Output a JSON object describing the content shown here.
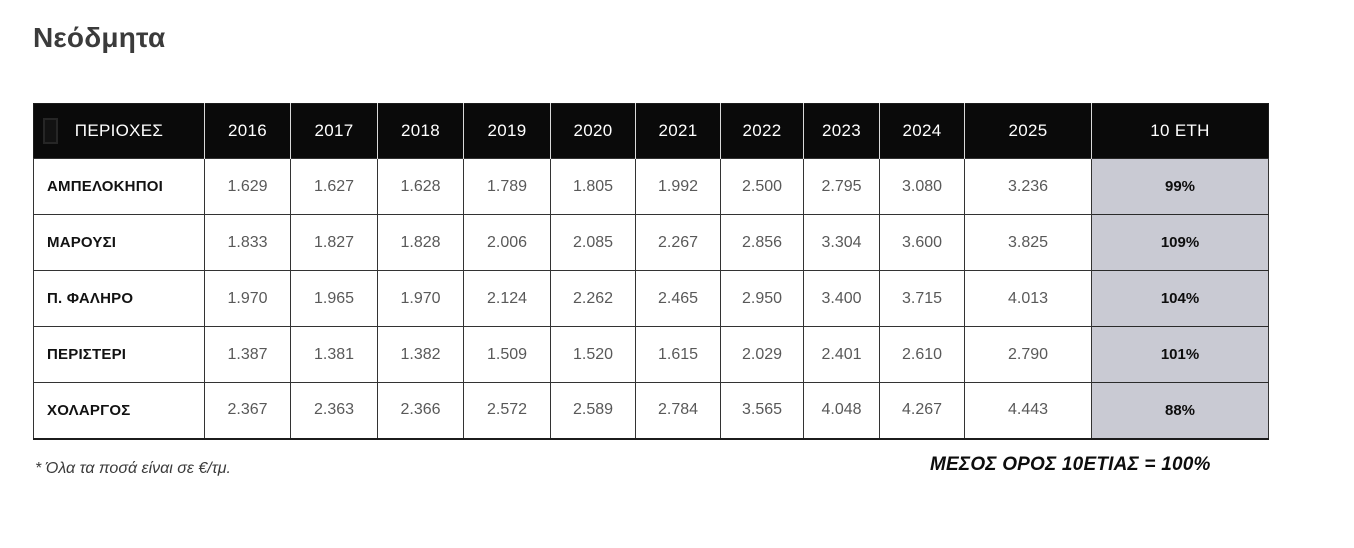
{
  "title": "Νεόδμητα",
  "table": {
    "region_header": "ΠΕΡΙΟΧΕΣ",
    "year_headers": [
      "2016",
      "2017",
      "2018",
      "2019",
      "2020",
      "2021",
      "2022",
      "2023",
      "2024",
      "2025"
    ],
    "summary_header": "10 ΕΤΗ",
    "rows": [
      {
        "region": "ΑΜΠΕΛΟΚΗΠΟΙ",
        "values": [
          "1.629",
          "1.627",
          "1.628",
          "1.789",
          "1.805",
          "1.992",
          "2.500",
          "2.795",
          "3.080",
          "3.236"
        ],
        "ten_year": "99%"
      },
      {
        "region": "ΜΑΡΟΥΣΙ",
        "values": [
          "1.833",
          "1.827",
          "1.828",
          "2.006",
          "2.085",
          "2.267",
          "2.856",
          "3.304",
          "3.600",
          "3.825"
        ],
        "ten_year": "109%"
      },
      {
        "region": "Π. ΦΑΛΗΡΟ",
        "values": [
          "1.970",
          "1.965",
          "1.970",
          "2.124",
          "2.262",
          "2.465",
          "2.950",
          "3.400",
          "3.715",
          "4.013"
        ],
        "ten_year": "104%"
      },
      {
        "region": "ΠΕΡΙΣΤΕΡΙ",
        "values": [
          "1.387",
          "1.381",
          "1.382",
          "1.509",
          "1.520",
          "1.615",
          "2.029",
          "2.401",
          "2.610",
          "2.790"
        ],
        "ten_year": "101%"
      },
      {
        "region": "ΧΟΛΑΡΓΟΣ",
        "values": [
          "2.367",
          "2.363",
          "2.366",
          "2.572",
          "2.589",
          "2.784",
          "3.565",
          "4.048",
          "4.267",
          "4.443"
        ],
        "ten_year": "88%"
      }
    ]
  },
  "footnotes": {
    "left": "* Όλα τα ποσά είναι σε €/τμ.",
    "right": "ΜΕΣΟΣ ΟΡΟΣ 10ΕΤΙΑΣ = 100%"
  },
  "colors": {
    "header_bg": "#0a0a0a",
    "header_text": "#ffffff",
    "summary_cell_bg": "#c9cad3",
    "number_text": "#595959",
    "border": "#333333"
  },
  "chart_data": {
    "type": "table",
    "title": "Νεόδμητα",
    "unit": "€/τμ.",
    "columns": [
      "ΠΕΡΙΟΧΕΣ",
      "2016",
      "2017",
      "2018",
      "2019",
      "2020",
      "2021",
      "2022",
      "2023",
      "2024",
      "2025",
      "10 ΕΤΗ"
    ],
    "rows": [
      [
        "ΑΜΠΕΛΟΚΗΠΟΙ",
        1629,
        1627,
        1628,
        1789,
        1805,
        1992,
        2500,
        2795,
        3080,
        3236,
        "99%"
      ],
      [
        "ΜΑΡΟΥΣΙ",
        1833,
        1827,
        1828,
        2006,
        2085,
        2267,
        2856,
        3304,
        3600,
        3825,
        "109%"
      ],
      [
        "Π. ΦΑΛΗΡΟ",
        1970,
        1965,
        1970,
        2124,
        2262,
        2465,
        2950,
        3400,
        3715,
        4013,
        "104%"
      ],
      [
        "ΠΕΡΙΣΤΕΡΙ",
        1387,
        1381,
        1382,
        1509,
        1520,
        1615,
        2029,
        2401,
        2610,
        2790,
        "101%"
      ],
      [
        "ΧΟΛΑΡΓΟΣ",
        2367,
        2363,
        2366,
        2572,
        2589,
        2784,
        3565,
        4048,
        4267,
        4443,
        "88%"
      ]
    ]
  }
}
